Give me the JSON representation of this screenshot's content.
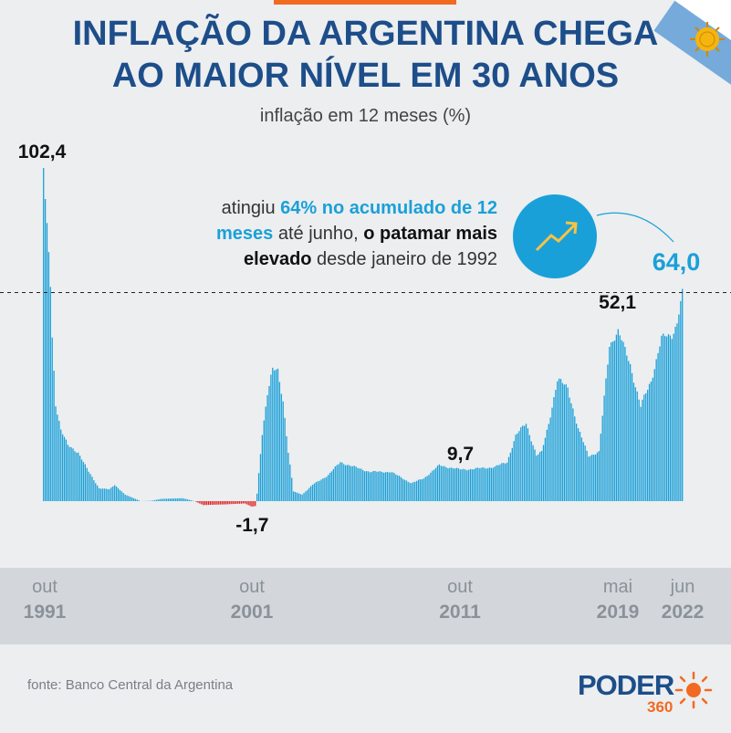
{
  "header": {
    "title_line1": "INFLAÇÃO DA ARGENTINA CHEGA",
    "title_line2": "AO MAIOR NÍVEL EM 30 ANOS",
    "subtitle": "inflação em 12 meses (%)"
  },
  "note": {
    "p1": "atingiu ",
    "p2": "64% no acumulado de 12 meses",
    "p3": " até junho, ",
    "p4": "o patamar mais elevado",
    "p5": " desde janeiro de 1992"
  },
  "axis": {
    "ticks": [
      {
        "month": "out",
        "year": "1991"
      },
      {
        "month": "out",
        "year": "2001"
      },
      {
        "month": "out",
        "year": "2011"
      },
      {
        "month": "mai",
        "year": "2019"
      },
      {
        "month": "jun",
        "year": "2022"
      }
    ]
  },
  "source": "fonte: Banco Central da Argentina",
  "logo": {
    "name": "PODER",
    "number": "360"
  },
  "colors": {
    "positive": "#1aa0d8",
    "negative": "#e02020",
    "title": "#1d4e8a",
    "accent": "#f26a21"
  },
  "chart_data": {
    "type": "bar",
    "x_start": "1991-10",
    "x_end": "2022-06",
    "anchors": [
      [
        "1991-10",
        102.4
      ],
      [
        "1991-11",
        92
      ],
      [
        "1991-12",
        84
      ],
      [
        "1992-01",
        76
      ],
      [
        "1992-02",
        66
      ],
      [
        "1992-03",
        50
      ],
      [
        "1992-05",
        30
      ],
      [
        "1992-08",
        22
      ],
      [
        "1992-12",
        17
      ],
      [
        "1993-06",
        15
      ],
      [
        "1993-12",
        9
      ],
      [
        "1994-06",
        4
      ],
      [
        "1994-12",
        3.6
      ],
      [
        "1995-03",
        5
      ],
      [
        "1995-09",
        2
      ],
      [
        "1996-06",
        0
      ],
      [
        "1996-12",
        0.1
      ],
      [
        "1997-06",
        0.7
      ],
      [
        "1998-06",
        0.9
      ],
      [
        "1999-01",
        0
      ],
      [
        "1999-06",
        -1.2
      ],
      [
        "2000-06",
        -1
      ],
      [
        "2001-06",
        -0.7
      ],
      [
        "2001-10",
        -1.7
      ],
      [
        "2001-12",
        -1.5
      ],
      [
        "2002-01",
        2.3
      ],
      [
        "2002-04",
        21
      ],
      [
        "2002-07",
        33
      ],
      [
        "2002-10",
        40
      ],
      [
        "2003-01",
        40
      ],
      [
        "2003-04",
        31
      ],
      [
        "2003-07",
        15
      ],
      [
        "2003-10",
        3
      ],
      [
        "2004-03",
        2
      ],
      [
        "2004-09",
        5
      ],
      [
        "2005-06",
        8
      ],
      [
        "2006-01",
        12
      ],
      [
        "2006-06",
        11
      ],
      [
        "2007-06",
        9
      ],
      [
        "2008-06",
        9
      ],
      [
        "2009-06",
        5.5
      ],
      [
        "2010-01",
        7
      ],
      [
        "2010-10",
        11
      ],
      [
        "2011-10",
        9.7
      ],
      [
        "2012-06",
        9.9
      ],
      [
        "2013-06",
        10.5
      ],
      [
        "2014-01",
        12
      ],
      [
        "2014-06",
        20
      ],
      [
        "2014-12",
        24
      ],
      [
        "2015-06",
        14
      ],
      [
        "2015-09",
        15
      ],
      [
        "2016-01",
        24
      ],
      [
        "2016-06",
        37
      ],
      [
        "2016-12",
        35
      ],
      [
        "2017-06",
        22
      ],
      [
        "2017-12",
        14
      ],
      [
        "2018-06",
        15
      ],
      [
        "2018-12",
        48
      ],
      [
        "2019-05",
        52.1
      ],
      [
        "2019-12",
        42
      ],
      [
        "2020-06",
        29
      ],
      [
        "2020-12",
        37
      ],
      [
        "2021-06",
        50
      ],
      [
        "2021-12",
        50.9
      ],
      [
        "2022-03",
        55
      ],
      [
        "2022-06",
        64.0
      ]
    ],
    "labels": [
      {
        "date": "1991-10",
        "value": "102,4"
      },
      {
        "date": "2001-10",
        "value": "-1,7"
      },
      {
        "date": "2011-10",
        "value": "9,7"
      },
      {
        "date": "2019-05",
        "value": "52,1"
      },
      {
        "date": "2022-06",
        "value": "64,0"
      }
    ],
    "reference_line": 64.0
  }
}
